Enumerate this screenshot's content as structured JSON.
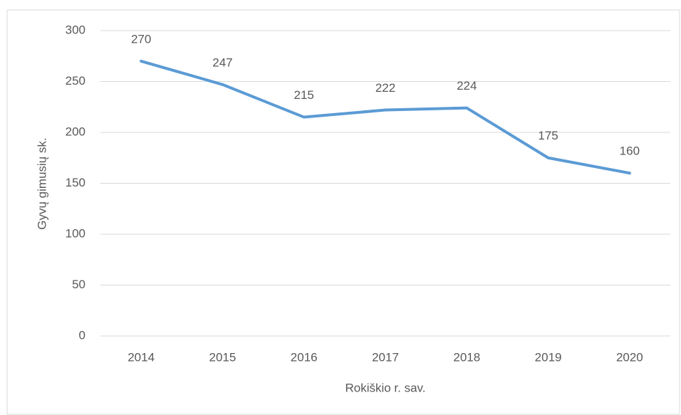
{
  "chart_data": {
    "type": "line",
    "categories": [
      "2014",
      "2015",
      "2016",
      "2017",
      "2018",
      "2019",
      "2020"
    ],
    "series": [
      {
        "name": "Gyvų gimusių sk.",
        "color": "#5b9bd5",
        "values": [
          270,
          247,
          215,
          222,
          224,
          175,
          160
        ]
      }
    ],
    "y_label": "Gyvų gimusių sk.",
    "x_label": "Rokiškio r. sav.",
    "ylim": [
      0,
      300
    ],
    "yticks": [
      0,
      50,
      100,
      150,
      200,
      250,
      300
    ],
    "grid": true
  }
}
